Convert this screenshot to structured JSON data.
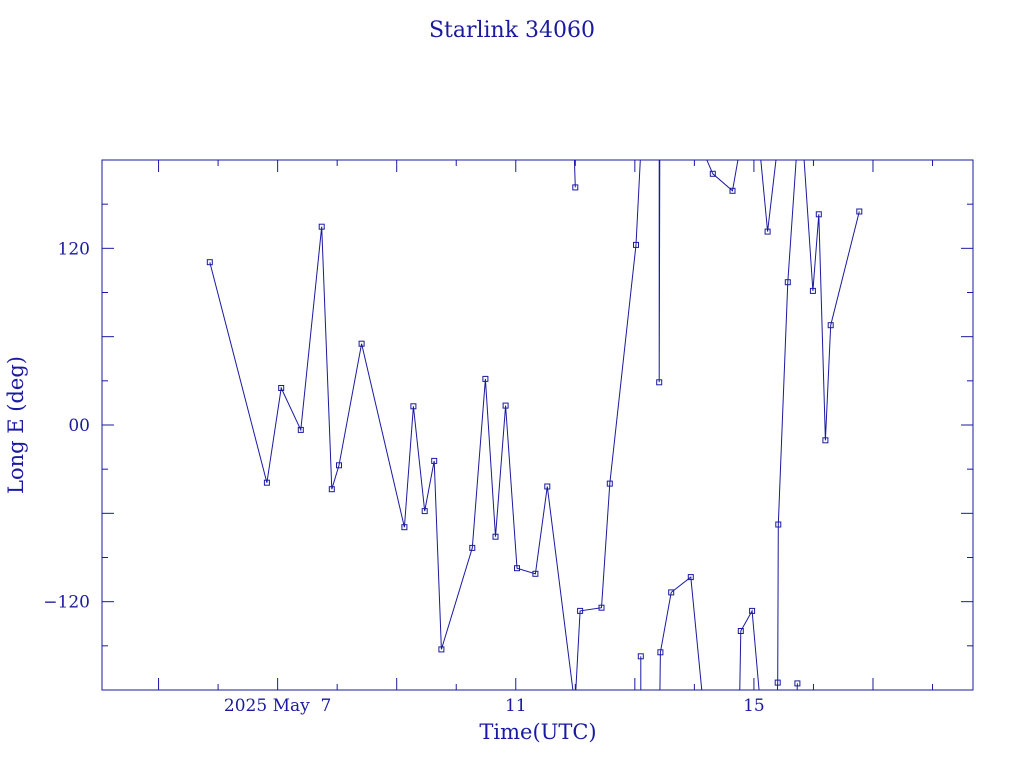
{
  "colors": {
    "ink": "#1a1aa0"
  },
  "chart_data": {
    "type": "scatter",
    "title": "Starlink 34060",
    "xlabel": "Time(UTC)",
    "ylabel": "Long E (deg)",
    "x_unit": "days in May 2025 (UTC)",
    "xlim": [
      4.05,
      18.68
    ],
    "ylim": [
      -180,
      180
    ],
    "x_ticks": [
      {
        "value": 7,
        "label": "2025 May  7"
      },
      {
        "value": 11,
        "label": "11"
      },
      {
        "value": 15,
        "label": "15"
      }
    ],
    "y_ticks": [
      {
        "value": 120,
        "label": "120"
      },
      {
        "value": 0,
        "label": "00"
      },
      {
        "value": -120,
        "label": "−120"
      }
    ],
    "grid": false,
    "markers": "small squares",
    "segments": [
      {
        "points": [
          [
            5.86,
            110.6
          ],
          [
            6.82,
            -39.2
          ],
          [
            7.06,
            25.1
          ],
          [
            7.39,
            -3.3
          ],
          [
            7.74,
            134.7
          ],
          [
            7.91,
            -43.6
          ],
          [
            8.03,
            -27.4
          ],
          [
            8.41,
            55.2
          ],
          [
            9.13,
            -69.4
          ],
          [
            9.28,
            12.7
          ],
          [
            9.47,
            -58.5
          ],
          [
            9.63,
            -24.4
          ],
          [
            9.75,
            -152.4
          ],
          [
            10.27,
            -83.5
          ],
          [
            10.49,
            31.3
          ],
          [
            10.66,
            -75.9
          ],
          [
            10.83,
            13.2
          ],
          [
            11.02,
            -97.3
          ],
          [
            11.33,
            -101.1
          ],
          [
            11.53,
            -41.8
          ],
          [
            11.98,
            -186.5
          ]
        ]
      },
      {
        "points": [
          [
            11.98,
            186.5
          ],
          [
            12.0,
            161.4
          ]
        ]
      },
      {
        "points": [
          [
            12.0,
            -186.5
          ],
          [
            12.08,
            -126.3
          ],
          [
            12.44,
            -124.1
          ],
          [
            12.58,
            -39.8
          ],
          [
            13.02,
            122.3
          ],
          [
            13.1,
            186.5
          ]
        ]
      },
      {
        "points": [
          [
            13.1,
            -186.5
          ],
          [
            13.1,
            -157.1
          ]
        ]
      },
      {
        "points": [
          [
            13.41,
            186.5
          ],
          [
            13.41,
            29.0
          ],
          [
            13.42,
            186.5
          ]
        ]
      },
      {
        "points": [
          [
            13.42,
            -186.5
          ],
          [
            13.43,
            -154.4
          ],
          [
            13.61,
            -113.7
          ],
          [
            13.94,
            -103.3
          ],
          [
            14.14,
            -186.5
          ]
        ]
      },
      {
        "points": [
          [
            14.14,
            186.5
          ],
          [
            14.31,
            170.6
          ],
          [
            14.64,
            159.1
          ],
          [
            14.76,
            186.5
          ]
        ]
      },
      {
        "points": [
          [
            14.76,
            -186.5
          ],
          [
            14.78,
            -139.9
          ],
          [
            14.97,
            -126.3
          ],
          [
            15.1,
            -186.5
          ]
        ]
      },
      {
        "points": [
          [
            15.1,
            186.5
          ],
          [
            15.23,
            131.4
          ],
          [
            15.39,
            186.5
          ]
        ]
      },
      {
        "points": [
          [
            15.39,
            -186.5
          ],
          [
            15.4,
            -175.0
          ],
          [
            15.41,
            -67.6
          ],
          [
            15.57,
            97.0
          ],
          [
            15.72,
            186.5
          ]
        ]
      },
      {
        "points": [
          [
            15.72,
            -186.5
          ],
          [
            15.73,
            -175.5
          ]
        ]
      },
      {
        "points": [
          [
            15.73,
            186.5
          ],
          [
            15.84,
            182.2
          ],
          [
            15.99,
            91.1
          ],
          [
            16.09,
            143.1
          ],
          [
            16.2,
            -10.4
          ],
          [
            16.29,
            67.8
          ],
          [
            16.77,
            145.0
          ]
        ]
      }
    ]
  }
}
